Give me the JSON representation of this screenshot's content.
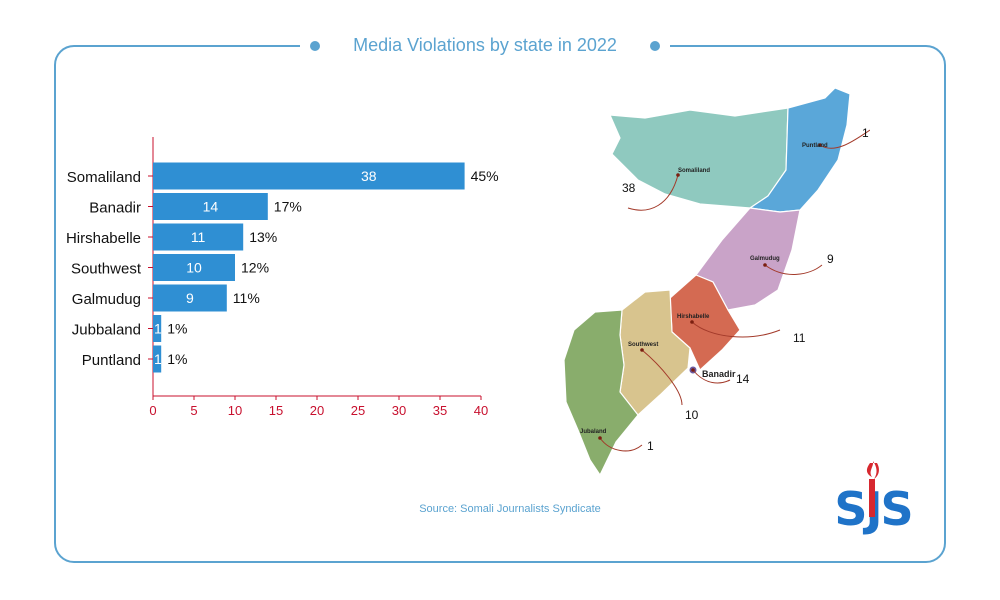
{
  "title": "Media Violations by state in 2022",
  "source": "Source: Somali Journalists Syndicate",
  "logo_text": "SJS",
  "colors": {
    "accent": "#5ba3d0",
    "bar": "#2f8fd3",
    "axis": "#c8102e",
    "logo_blue": "#1f73c8",
    "logo_red": "#d7282f"
  },
  "chart_data": {
    "type": "bar",
    "orientation": "horizontal",
    "categories": [
      "Somaliland",
      "Banadir",
      "Hirshabelle",
      "Southwest",
      "Galmudug",
      "Jubbaland",
      "Puntland"
    ],
    "values": [
      38,
      14,
      11,
      10,
      9,
      1,
      1
    ],
    "percent_labels": [
      "45%",
      "17%",
      "13%",
      "12%",
      "11%",
      "1%",
      "1%"
    ],
    "xlim": [
      0,
      40
    ],
    "xticks": [
      0,
      5,
      10,
      15,
      20,
      25,
      30,
      35,
      40
    ],
    "grid": false
  },
  "map": {
    "regions": [
      {
        "name": "Puntland",
        "label": "Puntland",
        "count": "1",
        "color": "#5aa7d9"
      },
      {
        "name": "Somaliland",
        "label": "Somaliland",
        "count": "38",
        "color": "#8fc9bf"
      },
      {
        "name": "Galmudug",
        "label": "Galmudug",
        "count": "9",
        "color": "#c9a3c8"
      },
      {
        "name": "Hirshabelle",
        "label": "Hirshabelle",
        "count": "11",
        "color": "#d46a52"
      },
      {
        "name": "Banadir",
        "label": "Banadir",
        "count": "14",
        "color": "#6b5aa0"
      },
      {
        "name": "Southwest",
        "label": "Southwest",
        "count": "10",
        "color": "#d8c48e"
      },
      {
        "name": "Jubbaland",
        "label": "Jubaland",
        "count": "1",
        "color": "#89ad6c"
      }
    ]
  }
}
